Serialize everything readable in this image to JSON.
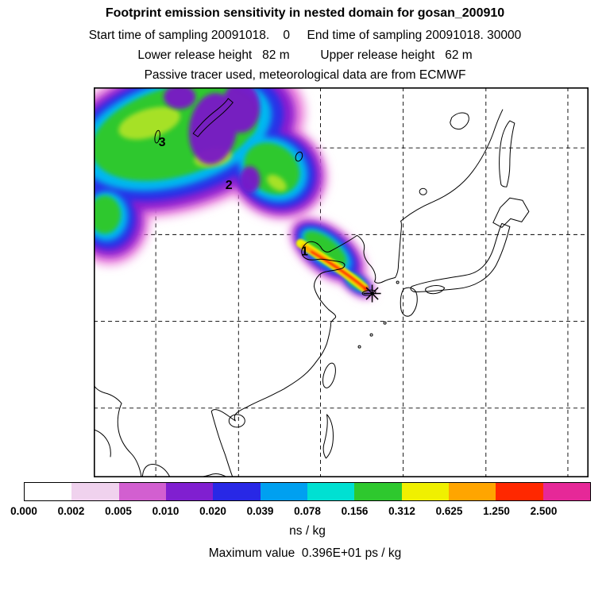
{
  "header": {
    "title": "Footprint emission sensitivity in nested domain for gosan_200910",
    "sampling_line": "Start time of sampling 20091018.    0     End time of sampling 20091018. 30000",
    "release_line": "Lower release height   82 m         Upper release height   62 m",
    "tracer_line": "Passive tracer used, meteorological data are from ECMWF"
  },
  "map": {
    "markers": [
      {
        "label": "1"
      },
      {
        "label": "2"
      },
      {
        "label": "3"
      }
    ],
    "receptor_marker": "star"
  },
  "colorbar": {
    "units": "ns / kg",
    "tick_labels": [
      "0.000",
      "0.002",
      "0.005",
      "0.010",
      "0.020",
      "0.039",
      "0.078",
      "0.156",
      "0.312",
      "0.625",
      "1.250",
      "2.500"
    ],
    "colors": [
      "#ffffff",
      "#f0d2ee",
      "#d25fd0",
      "#801fd0",
      "#2828e6",
      "#00a0f0",
      "#00e0d2",
      "#2ec82e",
      "#f0f000",
      "#ffa500",
      "#ff2800",
      "#e62898"
    ]
  },
  "footer": {
    "maximum_line": "Maximum value  0.396E+01 ps / kg"
  },
  "chart_data": {
    "type": "heatmap",
    "title": "Footprint emission sensitivity in nested domain for gosan_200910",
    "annotations": {
      "sampling": "Start time of sampling 20091018.    0     End time of sampling 20091018. 30000",
      "release_heights": "Lower release height   82 m         Upper release height   62 m",
      "tracer": "Passive tracer used, meteorological data are from ECMWF"
    },
    "colorbar": {
      "units": "ns / kg",
      "levels": [
        0.0,
        0.002,
        0.005,
        0.01,
        0.02,
        0.039,
        0.078,
        0.156,
        0.312,
        0.625,
        1.25,
        2.5
      ],
      "colors": [
        "#ffffff",
        "#f0d2ee",
        "#d25fd0",
        "#801fd0",
        "#2828e6",
        "#00a0f0",
        "#00e0d2",
        "#2ec82e",
        "#f0f000",
        "#ffa500",
        "#ff2800",
        "#e62898"
      ],
      "note": "last color segment extends beyond 2.500"
    },
    "maximum_value": "0.396E+01 ps / kg",
    "overlay": {
      "plume_day_markers": [
        "1",
        "2",
        "3"
      ],
      "receptor_marker": "star near Jeju/Gosan",
      "plume_extent": "high-sensitivity core at receptor extending northwest across NE China/Mongolia to upper-left corner of domain"
    }
  }
}
